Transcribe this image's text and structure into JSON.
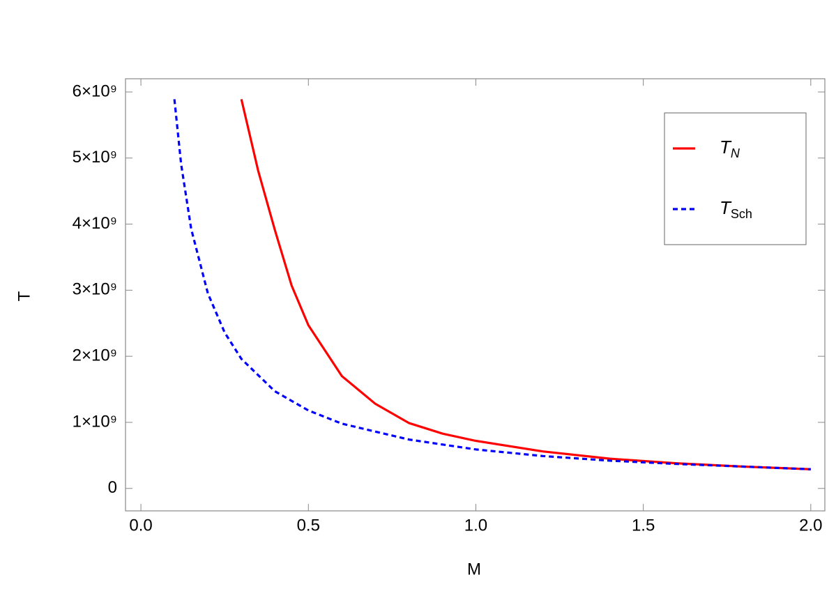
{
  "chart_data": {
    "type": "line",
    "xlabel": "M",
    "ylabel": "T",
    "xlim": [
      -0.046,
      2.042
    ],
    "ylim": [
      -340000000,
      6200000000
    ],
    "xticks": [
      {
        "value": 0,
        "label": "0.0"
      },
      0.5,
      {
        "value": 1,
        "label": "1.0"
      },
      1.5,
      {
        "value": 2,
        "label": "2.0"
      }
    ],
    "yticks": [
      0,
      {
        "value": 1000000000,
        "label": "1×10⁹"
      },
      {
        "value": 2000000000,
        "label": "2×10⁹"
      },
      {
        "value": 3000000000,
        "label": "3×10⁹"
      },
      {
        "value": 4000000000,
        "label": "4×10⁹"
      },
      {
        "value": 5000000000,
        "label": "5×10⁹"
      },
      {
        "value": 6000000000,
        "label": "6×10⁹"
      }
    ],
    "series": [
      {
        "name": "TN",
        "color": "#ff0000",
        "dashed": false,
        "x": [
          0.3,
          0.35,
          0.4,
          0.45,
          0.5,
          0.6,
          0.7,
          0.8,
          0.9,
          1.0,
          1.2,
          1.4,
          1.6,
          1.8,
          2.0
        ],
        "values": [
          5890000000,
          4810000000,
          3910000000,
          3070000000,
          2470000000,
          1700000000,
          1280000000,
          990000000,
          830000000,
          720000000,
          560000000,
          450000000,
          380000000,
          330000000,
          290000000
        ]
      },
      {
        "name": "TSch",
        "color": "#0000ff",
        "dashed": true,
        "x": [
          0.1,
          0.12,
          0.15,
          0.2,
          0.25,
          0.3,
          0.4,
          0.5,
          0.6,
          0.8,
          1.0,
          1.2,
          1.4,
          1.6,
          1.8,
          2.0
        ],
        "values": [
          5890000000,
          4910000000,
          3930000000,
          2950000000,
          2360000000,
          1960000000,
          1470000000,
          1180000000,
          980000000,
          740000000,
          590000000,
          490000000,
          420000000,
          370000000,
          330000000,
          290000000
        ]
      }
    ]
  }
}
